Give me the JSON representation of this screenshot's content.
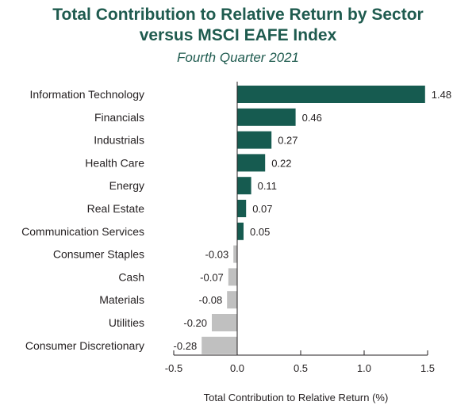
{
  "chart_data": {
    "type": "bar",
    "orientation": "horizontal",
    "title_line1": "Total Contribution to Relative Return by Sector",
    "title_line2": "versus MSCI EAFE Index",
    "subtitle": "Fourth Quarter 2021",
    "xlabel": "Total Contribution to Relative Return (%)",
    "ylabel": "",
    "xlim": [
      -0.5,
      1.5
    ],
    "xticks": [
      "-0.5",
      "0.0",
      "0.5",
      "1.0",
      "1.5"
    ],
    "categories": [
      "Information Technology",
      "Financials",
      "Industrials",
      "Health Care",
      "Energy",
      "Real Estate",
      "Communication Services",
      "Consumer Staples",
      "Cash",
      "Materials",
      "Utilities",
      "Consumer Discretionary"
    ],
    "values": [
      1.48,
      0.46,
      0.27,
      0.22,
      0.11,
      0.07,
      0.05,
      -0.03,
      -0.07,
      -0.08,
      -0.2,
      -0.28
    ],
    "value_labels": [
      "1.48",
      "0.46",
      "0.27",
      "0.22",
      "0.11",
      "0.07",
      "0.05",
      "-0.03",
      "-0.07",
      "-0.08",
      "-0.20",
      "-0.28"
    ],
    "colors": {
      "positive": "#165b50",
      "negative": "#c0c0c0",
      "axis": "#231f20"
    },
    "grid": false,
    "legend": "none"
  }
}
